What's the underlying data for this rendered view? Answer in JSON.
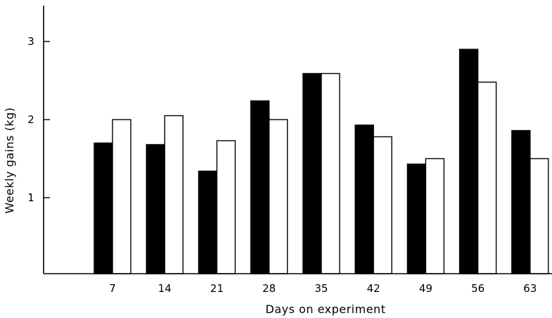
{
  "chart_data": {
    "type": "bar",
    "xlabel": "Days on experiment",
    "ylabel": "Weekly gains (kg)",
    "categories": [
      "7",
      "14",
      "21",
      "28",
      "35",
      "42",
      "49",
      "56",
      "63"
    ],
    "yticks": [
      "1",
      "2",
      "3"
    ],
    "ylim": [
      0,
      3.5
    ],
    "grid": false,
    "legend": "none",
    "series": [
      {
        "color": "#000000",
        "values": [
          1.7,
          1.68,
          1.34,
          2.24,
          2.59,
          1.93,
          1.43,
          2.9,
          1.86
        ]
      },
      {
        "color": "#ffffff",
        "values": [
          2.0,
          2.05,
          1.73,
          2.0,
          2.59,
          1.78,
          1.5,
          2.48,
          1.5
        ]
      }
    ]
  }
}
